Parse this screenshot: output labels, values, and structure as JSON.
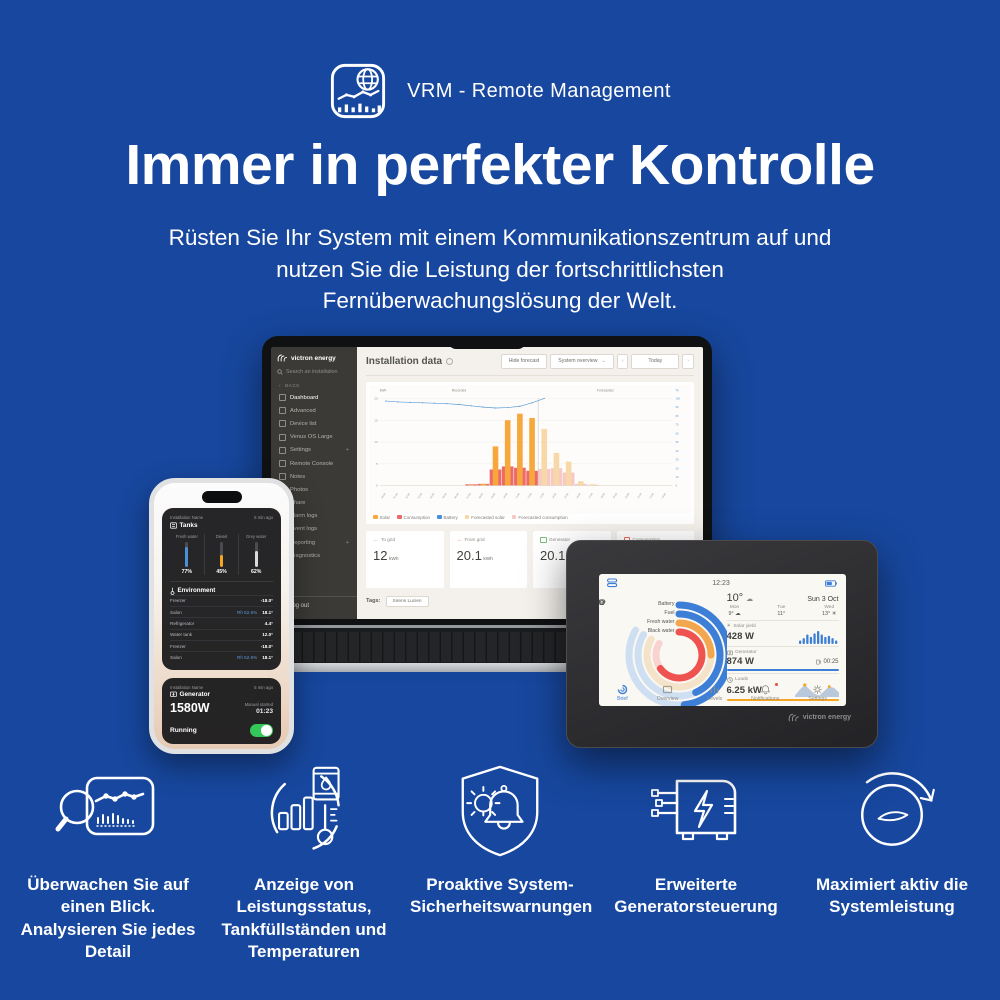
{
  "page": {
    "background": "#17479e"
  },
  "badge": {
    "label": "VRM - Remote Management"
  },
  "hero": {
    "title": "Immer in perfekter Kontrolle",
    "line1": "Rüsten Sie Ihr System mit einem Kommunikationszentrum auf und",
    "line2": "nutzen Sie die Leistung der fortschrittlichsten",
    "line3": "Fernüberwachungslösung der Welt."
  },
  "laptop": {
    "brand": "victron energy",
    "sidebar": {
      "search_placeholder": "Search an installation",
      "back": "BACK",
      "plus": "+",
      "items": [
        "Dashboard",
        "Advanced",
        "Device list",
        "Venus OS Large",
        "Settings",
        "Remote Console",
        "Notes",
        "Photos",
        "Share",
        "Alarm logs",
        "Event logs",
        "Reporting",
        "Diagnostics"
      ],
      "logout": "Log out"
    },
    "toolbar": {
      "title": "Installation data",
      "hide_forecast": "Hide forecast",
      "system_overview": "System overview",
      "today": "Today",
      "prev": "‹",
      "next": "›",
      "chevron": "⌄"
    },
    "legend": [
      {
        "label": "Solar",
        "color": "#f6a83c"
      },
      {
        "label": "Consumption",
        "color": "#ee6a6a"
      },
      {
        "label": "Battery",
        "color": "#4a90d9"
      },
      {
        "label": "Forecasted solar",
        "color": "#f8d8a8"
      },
      {
        "label": "Forecasted consumption",
        "color": "#f6c9c4"
      }
    ],
    "cards": [
      {
        "label": "To grid",
        "arrow": "←",
        "accent": "#79c079",
        "value": "12",
        "unit": "kWh"
      },
      {
        "label": "From grid",
        "arrow": "→",
        "accent": "#e86c60",
        "value": "20.1",
        "unit": "kWh"
      },
      {
        "label": "Generator",
        "accent": "#79c079",
        "value": "20.1",
        "unit": "kWh"
      },
      {
        "label": "Consumption",
        "accent": "#e86c60",
        "value": "20",
        "unit": "",
        "sub1": "Forecast",
        "sub2": "Total"
      }
    ],
    "tags_label": "Tags:",
    "tag": "Sirens Lucien"
  },
  "phone": {
    "tanks_widget": {
      "installation": "Installation Name",
      "title": "Tanks",
      "ago": "5 min ago",
      "tanks": [
        {
          "name": "Fresh water",
          "level": 77,
          "display": "77%",
          "color": "#4a90d9"
        },
        {
          "name": "Diesel",
          "level": 45,
          "display": "45%",
          "color": "#f5a623"
        },
        {
          "name": "Grey water",
          "level": 62,
          "display": "62%",
          "color": "#d9d9dc"
        }
      ],
      "environment": "Environment",
      "rows": [
        {
          "name": "Freezer",
          "value": "-18.0°"
        },
        {
          "name": "Salon",
          "rh": "Rh 52.6%",
          "value": "18.1°"
        },
        {
          "name": "Refrigerator",
          "value": "4.4°"
        },
        {
          "name": "Water tank",
          "value": "12.0°"
        },
        {
          "name": "Freezer",
          "value": "-18.0°"
        },
        {
          "name": "Salon",
          "rh": "Rh 52.6%",
          "value": "18.1°"
        }
      ]
    },
    "generator_widget": {
      "installation": "Installation Name",
      "title": "Generator",
      "ago": "5 min ago",
      "power": "1580W",
      "manual_label": "Manual started",
      "manual_value": "01:23",
      "status": "Running"
    }
  },
  "gx": {
    "time": "12:23",
    "brand": "victron energy",
    "gauges": [
      {
        "label": "Battery",
        "color": "#3d7fd6",
        "track": "#cfdff2",
        "pct": 0.58
      },
      {
        "label": "Fuel",
        "color": "#3d7fd6",
        "track": "#cfdff2",
        "pct": 0.52
      },
      {
        "label": "Fresh water",
        "color": "#f2a64e",
        "track": "#f4e3c9",
        "pct": 0.3
      },
      {
        "label": "Black water",
        "color": "#ef5350",
        "track": "#f8d3d0",
        "pct": 0.78
      }
    ],
    "weather": {
      "temp": "10°",
      "glyph": "☁",
      "date": "Sun 3 Oct",
      "days": [
        {
          "name": "Mon",
          "temp": "9°",
          "glyph": "☁"
        },
        {
          "name": "Tue",
          "temp": "11°",
          "glyph": ""
        },
        {
          "name": "Wed",
          "temp": "13°",
          "glyph": "☀"
        }
      ]
    },
    "solar": {
      "label": "Solar yield",
      "value": "428 W",
      "glyph": "☀",
      "bars": [
        3,
        5,
        8,
        6,
        9,
        11,
        8,
        6,
        7,
        5,
        3
      ]
    },
    "generator": {
      "label": "Generator",
      "value": "874 W",
      "runtime": "00:25"
    },
    "loads": {
      "label": "Loads",
      "value": "6.25 kW",
      "area": [
        1,
        5,
        8,
        5,
        2,
        1,
        4,
        7,
        6,
        3
      ]
    },
    "tabs": [
      {
        "label": "Brief"
      },
      {
        "label": "Overview"
      },
      {
        "label": "Levels"
      },
      {
        "label": "Notifications"
      },
      {
        "label": "Settings"
      }
    ]
  },
  "features": [
    {
      "icon": "magnifier-chart-icon",
      "caption": "Überwachen Sie auf einen Blick. Analysieren Sie jedes Detail"
    },
    {
      "icon": "levels-tanks-temps-icon",
      "caption": "Anzeige von Leistungsstatus, Tankfüllständen und Temperaturen"
    },
    {
      "icon": "shield-bell-icon",
      "caption": "Proaktive System-Sicherheitswarnungen"
    },
    {
      "icon": "generator-icon",
      "caption": "Erweiterte Generatorsteuerung"
    },
    {
      "icon": "gauge-arrow-icon",
      "caption": "Maximiert aktiv die Systemleistung"
    }
  ],
  "chart_data": {
    "type": "bar+line",
    "x": [
      "00:00",
      "01:00",
      "02:00",
      "03:00",
      "04:00",
      "05:00",
      "06:00",
      "07:00",
      "08:00",
      "09:00",
      "10:00",
      "11:00",
      "12:00",
      "13:00",
      "14:00",
      "15:00",
      "16:00",
      "17:00",
      "18:00",
      "19:00",
      "20:00",
      "21:00",
      "22:00",
      "23:00"
    ],
    "series": [
      {
        "name": "Solar",
        "type": "bar",
        "color": "#f6a83c",
        "values": [
          0,
          0,
          0,
          0,
          0,
          0,
          0,
          0.2,
          0.4,
          9,
          15,
          16.5,
          15.5,
          0,
          0,
          0,
          0,
          0,
          0,
          0,
          0,
          0,
          0,
          0
        ]
      },
      {
        "name": "Consumption",
        "type": "bar",
        "color": "#ee6a6a",
        "values": [
          0,
          0,
          0,
          0,
          0,
          0,
          0,
          0.3,
          0.4,
          3.7,
          4.4,
          4.1,
          3.4,
          0,
          0,
          0,
          0,
          0,
          0,
          0,
          0,
          0,
          0,
          0
        ]
      },
      {
        "name": "Forecasted solar",
        "type": "bar",
        "color": "#f8d8a8",
        "values": [
          0,
          0,
          0,
          0,
          0,
          0,
          0,
          0,
          0,
          0,
          0,
          0,
          0,
          13,
          7.5,
          5.5,
          1.0,
          0.3,
          0,
          0,
          0,
          0,
          0,
          0
        ]
      },
      {
        "name": "Forecasted consumption",
        "type": "bar",
        "color": "#f6c9c4",
        "values": [
          0,
          0,
          0,
          0,
          0,
          0,
          0,
          0,
          0,
          0,
          0,
          0,
          0,
          3.8,
          4.0,
          3.0,
          0.4,
          0.2,
          0,
          0,
          0,
          0,
          0,
          0
        ]
      },
      {
        "name": "Battery",
        "type": "line",
        "color": "#5b9bd5",
        "axis": "right",
        "values": [
          97,
          96,
          95.5,
          95,
          94.5,
          94,
          93,
          91.5,
          90,
          89,
          89.5,
          91,
          95,
          100,
          null,
          null,
          null,
          null,
          null,
          null,
          null,
          null,
          null,
          null
        ]
      }
    ],
    "y_label": "kWh",
    "y2_label": "%",
    "region_labels": [
      "Recorded",
      "Forecasted"
    ],
    "divider_index": 13,
    "ylim": [
      0,
      20
    ],
    "y2lim": [
      0,
      100
    ],
    "grid": true,
    "legend_position": "bottom"
  }
}
